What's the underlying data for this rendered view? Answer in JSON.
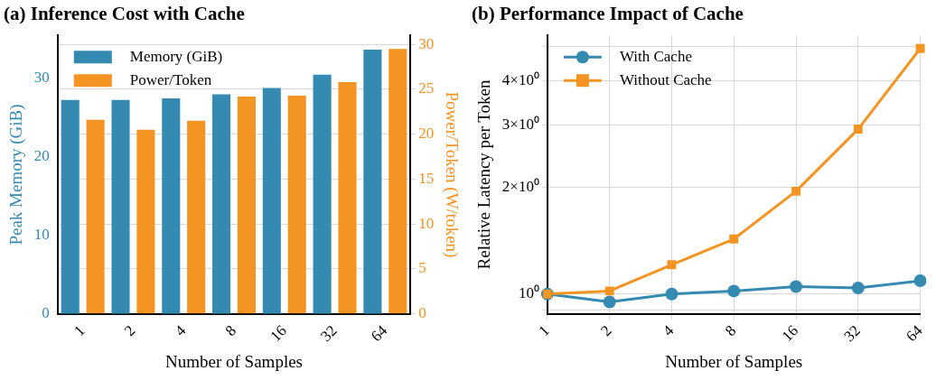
{
  "chart_data": [
    {
      "type": "bar",
      "title": "(a) Inference Cost with Cache",
      "xlabel": "Number of Samples",
      "ylabel": "Peak Memory (GiB)",
      "y2label": "Power/Token (W/token)",
      "categories": [
        "1",
        "2",
        "4",
        "8",
        "16",
        "32",
        "64"
      ],
      "series": [
        {
          "name": "Memory (GiB)",
          "color": "#348ab0",
          "values": [
            27.2,
            27.2,
            27.4,
            27.9,
            28.7,
            30.4,
            33.6
          ]
        },
        {
          "name": "Power/Token",
          "color": "#f39423",
          "axis": "y2",
          "values": [
            21.6,
            20.5,
            21.5,
            24.2,
            24.3,
            25.8,
            29.5
          ]
        }
      ],
      "ylim": [
        0,
        35.4
      ],
      "yticks": [
        0,
        10,
        20,
        30
      ],
      "y2lim": [
        0,
        31
      ],
      "y2ticks": [
        0,
        5,
        10,
        15,
        20,
        25,
        30
      ],
      "grid": "y",
      "legend": "top left"
    },
    {
      "type": "line",
      "title": "(b) Performance Impact of Cache",
      "xlabel": "Number of Samples",
      "ylabel": "Relative Latency per Token",
      "categories": [
        "1",
        "2",
        "4",
        "8",
        "16",
        "32",
        "64"
      ],
      "series": [
        {
          "name": "With Cache",
          "color": "#348ab0",
          "marker": "circle",
          "values": [
            1.0,
            0.95,
            1.0,
            1.02,
            1.05,
            1.04,
            1.09
          ]
        },
        {
          "name": "Without Cache",
          "color": "#f39423",
          "marker": "square",
          "values": [
            1.0,
            1.02,
            1.21,
            1.43,
            1.95,
            2.92,
            4.93
          ]
        }
      ],
      "log": "y",
      "ylim": [
        0.879,
        5.37
      ],
      "yticks": [
        {
          "value": 0.9,
          "label": null
        },
        {
          "value": 1,
          "label": "10⁰"
        },
        {
          "value": 2,
          "label": "2×10⁰"
        },
        {
          "value": 3,
          "label": "3×10⁰"
        },
        {
          "value": 4,
          "label": "4×10⁰"
        },
        {
          "value": 5,
          "label": null
        }
      ],
      "grid": true,
      "legend": "top left",
      "line_style": "solid"
    }
  ]
}
